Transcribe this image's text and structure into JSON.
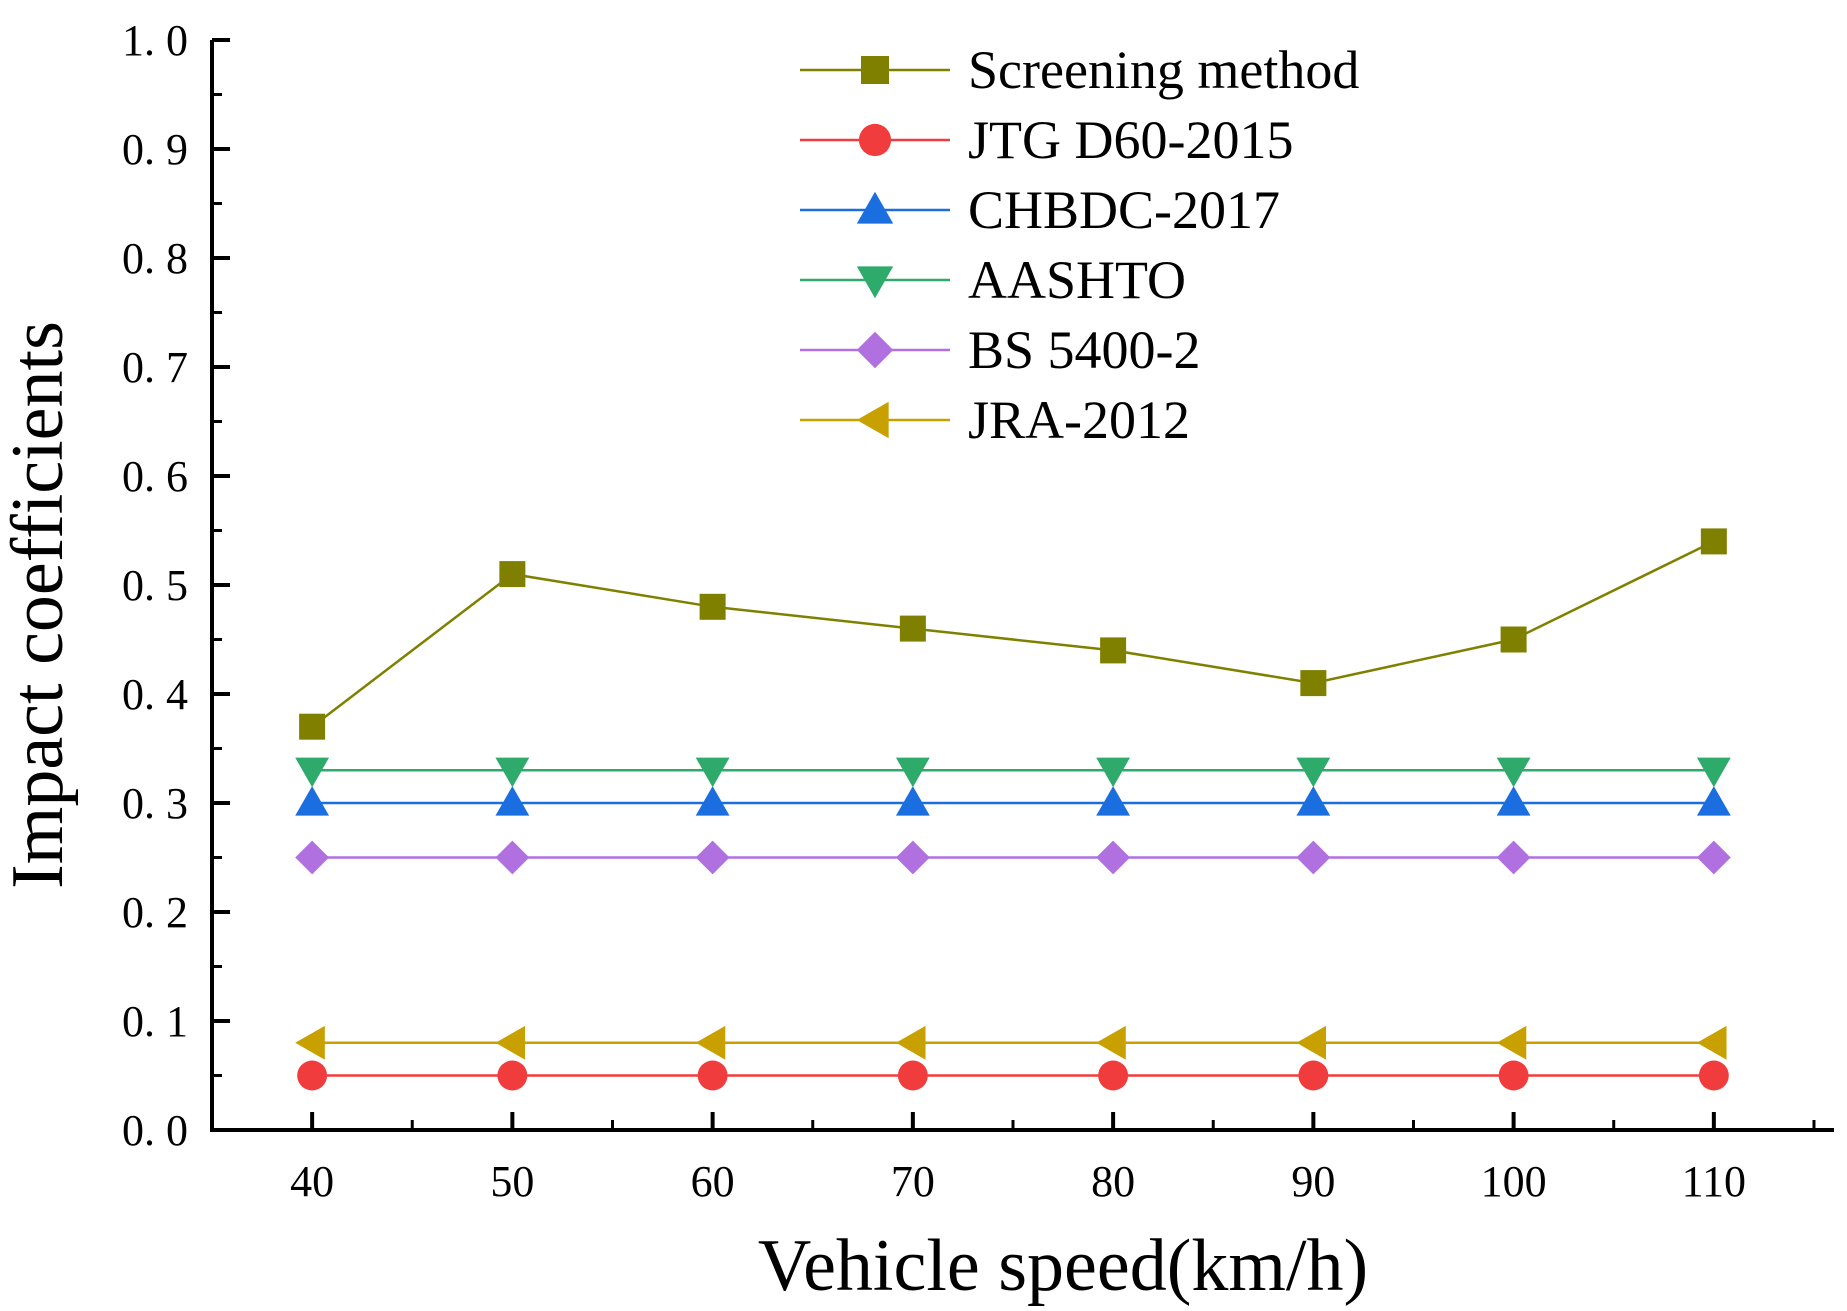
{
  "chart_data": {
    "type": "line",
    "title": "",
    "xlabel": "Vehicle speed(km/h)",
    "ylabel": "Impact coefficients",
    "x": [
      40,
      50,
      60,
      70,
      80,
      90,
      100,
      110
    ],
    "x_tick_labels": [
      "40",
      "50",
      "60",
      "70",
      "80",
      "90",
      "100",
      "110"
    ],
    "xlim": [
      35,
      116
    ],
    "ylim": [
      0,
      1.0
    ],
    "y_ticks": [
      0.0,
      0.1,
      0.2,
      0.3,
      0.4,
      0.5,
      0.6,
      0.7,
      0.8,
      0.9,
      1.0
    ],
    "y_tick_labels": [
      "0. 0",
      "0. 1",
      "0. 2",
      "0. 3",
      "0. 4",
      "0. 5",
      "0. 6",
      "0. 7",
      "0. 8",
      "0. 9",
      "1. 0"
    ],
    "grid": false,
    "legend_position": "top-right",
    "series": [
      {
        "name": "Screening method",
        "marker": "square",
        "color": "#808000",
        "values": [
          0.37,
          0.51,
          0.48,
          0.46,
          0.44,
          0.41,
          0.45,
          0.54
        ]
      },
      {
        "name": "JTG D60-2015",
        "marker": "circle",
        "color": "#F03C3C",
        "values": [
          0.05,
          0.05,
          0.05,
          0.05,
          0.05,
          0.05,
          0.05,
          0.05
        ]
      },
      {
        "name": "CHBDC-2017",
        "marker": "triangle-up",
        "color": "#1A6EE0",
        "values": [
          0.3,
          0.3,
          0.3,
          0.3,
          0.3,
          0.3,
          0.3,
          0.3
        ]
      },
      {
        "name": "AASHTO",
        "marker": "triangle-down",
        "color": "#2EAA6A",
        "values": [
          0.33,
          0.33,
          0.33,
          0.33,
          0.33,
          0.33,
          0.33,
          0.33
        ]
      },
      {
        "name": "BS 5400-2",
        "marker": "diamond",
        "color": "#B070E0",
        "values": [
          0.25,
          0.25,
          0.25,
          0.25,
          0.25,
          0.25,
          0.25,
          0.25
        ]
      },
      {
        "name": "JRA-2012",
        "marker": "triangle-left",
        "color": "#C8A000",
        "values": [
          0.08,
          0.08,
          0.08,
          0.08,
          0.08,
          0.08,
          0.08,
          0.08
        ]
      }
    ]
  }
}
